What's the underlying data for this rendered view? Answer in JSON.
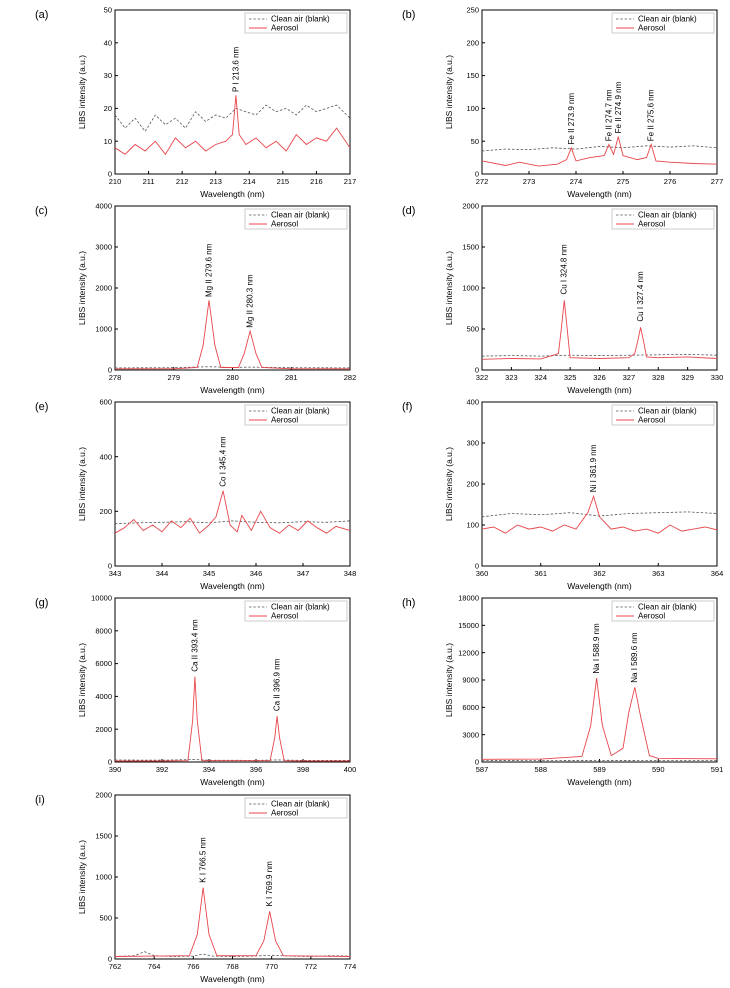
{
  "legend_labels": [
    "Clean air (blank)",
    "Aerosol"
  ],
  "colors": {
    "blank": "#555555",
    "aerosol": "#e8464b"
  },
  "chart_data": [
    {
      "type": "line",
      "panel": "(a)",
      "xlabel": "Wavelength (nm)",
      "ylabel": "LIBS intensity (a.u.)",
      "xlim": [
        210,
        217
      ],
      "ylim": [
        0,
        50
      ],
      "xticks": [
        210,
        211,
        212,
        213,
        214,
        215,
        216,
        217
      ],
      "yticks": [
        0,
        10,
        20,
        30,
        40,
        50
      ],
      "legend": "top-right",
      "series": [
        {
          "name": "Clean air (blank)",
          "x": [
            210,
            210.3,
            210.6,
            210.9,
            211.2,
            211.5,
            211.8,
            212.1,
            212.4,
            212.7,
            213.0,
            213.3,
            213.6,
            213.9,
            214.2,
            214.5,
            214.8,
            215.1,
            215.4,
            215.7,
            216.0,
            216.3,
            216.6,
            217.0
          ],
          "y": [
            18,
            14,
            17,
            13,
            18,
            15,
            17,
            14,
            19,
            16,
            18,
            17,
            20,
            19,
            18,
            21,
            19,
            20,
            18,
            21,
            19,
            20,
            21,
            17
          ]
        },
        {
          "name": "Aerosol",
          "x": [
            210,
            210.3,
            210.6,
            210.9,
            211.2,
            211.5,
            211.8,
            212.1,
            212.4,
            212.7,
            213.0,
            213.3,
            213.5,
            213.6,
            213.7,
            213.9,
            214.2,
            214.5,
            214.8,
            215.1,
            215.4,
            215.7,
            216.0,
            216.3,
            216.6,
            217.0
          ],
          "y": [
            8,
            6,
            9,
            7,
            10,
            6,
            11,
            8,
            10,
            7,
            9,
            10,
            12,
            24,
            12,
            9,
            11,
            8,
            10,
            7,
            12,
            9,
            11,
            10,
            14,
            8
          ]
        }
      ],
      "annotations": [
        {
          "text": "P I 213.6 nm",
          "x": 213.6,
          "y": 25
        }
      ]
    },
    {
      "type": "line",
      "panel": "(b)",
      "xlabel": "Wavelength (nm)",
      "ylabel": "LIBS intensity (a.u.)",
      "xlim": [
        272,
        277
      ],
      "ylim": [
        0,
        250
      ],
      "xticks": [
        272,
        273,
        274,
        275,
        276,
        277
      ],
      "yticks": [
        0,
        50,
        100,
        150,
        200,
        250
      ],
      "legend": "top-right",
      "series": [
        {
          "name": "Clean air (blank)",
          "x": [
            272,
            272.5,
            273,
            273.5,
            274,
            274.5,
            275,
            275.5,
            276,
            276.5,
            277
          ],
          "y": [
            35,
            38,
            37,
            40,
            38,
            42,
            40,
            43,
            41,
            43,
            40
          ]
        },
        {
          "name": "Aerosol",
          "x": [
            272,
            272.5,
            272.8,
            273.2,
            273.6,
            273.8,
            273.9,
            274.0,
            274.3,
            274.6,
            274.7,
            274.8,
            274.9,
            275.0,
            275.3,
            275.5,
            275.6,
            275.7,
            276.0,
            276.5,
            277
          ],
          "y": [
            20,
            13,
            18,
            12,
            15,
            22,
            40,
            20,
            25,
            28,
            45,
            30,
            57,
            28,
            22,
            25,
            45,
            20,
            18,
            16,
            15
          ]
        }
      ],
      "annotations": [
        {
          "text": "Fe II 273.9 nm",
          "x": 273.9,
          "y": 45
        },
        {
          "text": "Fe II 274.7 nm",
          "x": 274.7,
          "y": 50
        },
        {
          "text": "Fe II 274.9 nm",
          "x": 274.9,
          "y": 62
        },
        {
          "text": "Fe II 275.6 nm",
          "x": 275.6,
          "y": 50
        }
      ]
    },
    {
      "type": "line",
      "panel": "(c)",
      "xlabel": "Wavelength (nm)",
      "ylabel": "LIBS intensity (a.u.)",
      "xlim": [
        278,
        282
      ],
      "ylim": [
        0,
        4000
      ],
      "xticks": [
        278,
        279,
        280,
        281,
        282
      ],
      "yticks": [
        0,
        1000,
        2000,
        3000,
        4000
      ],
      "legend": "top-right",
      "series": [
        {
          "name": "Clean air (blank)",
          "x": [
            278,
            279,
            279.6,
            280,
            280.3,
            281,
            282
          ],
          "y": [
            50,
            55,
            80,
            60,
            70,
            55,
            50
          ]
        },
        {
          "name": "Aerosol",
          "x": [
            278,
            279,
            279.4,
            279.5,
            279.6,
            279.7,
            279.8,
            280.1,
            280.2,
            280.3,
            280.4,
            280.5,
            281,
            282
          ],
          "y": [
            30,
            30,
            60,
            600,
            1700,
            600,
            60,
            60,
            400,
            950,
            400,
            60,
            30,
            30
          ]
        }
      ],
      "annotations": [
        {
          "text": "Mg II 279.6 nm",
          "x": 279.6,
          "y": 1780
        },
        {
          "text": "Mg II 280.3 nm",
          "x": 280.3,
          "y": 1030
        }
      ]
    },
    {
      "type": "line",
      "panel": "(d)",
      "xlabel": "Wavelength (nm)",
      "ylabel": "LIBS intensity (a.u.)",
      "xlim": [
        322,
        330
      ],
      "ylim": [
        0,
        2000
      ],
      "xticks": [
        322,
        323,
        324,
        325,
        326,
        327,
        328,
        329,
        330
      ],
      "yticks": [
        0,
        500,
        1000,
        1500,
        2000
      ],
      "legend": "top-right",
      "series": [
        {
          "name": "Clean air (blank)",
          "x": [
            322,
            323,
            324,
            325,
            326,
            327,
            328,
            329,
            330
          ],
          "y": [
            170,
            175,
            170,
            180,
            175,
            180,
            185,
            190,
            180
          ]
        },
        {
          "name": "Aerosol",
          "x": [
            322,
            323,
            324,
            324.6,
            324.7,
            324.8,
            324.9,
            325.0,
            326,
            327,
            327.2,
            327.3,
            327.4,
            327.5,
            327.6,
            328,
            329,
            330
          ],
          "y": [
            130,
            140,
            135,
            200,
            500,
            850,
            500,
            150,
            140,
            150,
            200,
            350,
            520,
            350,
            160,
            150,
            160,
            140
          ]
        }
      ],
      "annotations": [
        {
          "text": "Cu I 324.8 nm",
          "x": 324.8,
          "y": 920
        },
        {
          "text": "Cu I 327.4 nm",
          "x": 327.4,
          "y": 590
        }
      ]
    },
    {
      "type": "line",
      "panel": "(e)",
      "xlabel": "Wavelength (nm)",
      "ylabel": "LIBS intensity (a.u.)",
      "xlim": [
        343,
        348
      ],
      "ylim": [
        0,
        600
      ],
      "xticks": [
        343,
        344,
        345,
        346,
        347,
        348
      ],
      "yticks": [
        0,
        200,
        400,
        600
      ],
      "legend": "top-right",
      "series": [
        {
          "name": "Clean air (blank)",
          "x": [
            343,
            343.5,
            344,
            344.5,
            345,
            345.5,
            346,
            346.5,
            347,
            347.5,
            348
          ],
          "y": [
            155,
            158,
            160,
            162,
            158,
            165,
            160,
            158,
            162,
            160,
            165
          ]
        },
        {
          "name": "Aerosol",
          "x": [
            343,
            343.2,
            343.4,
            343.6,
            343.8,
            344.0,
            344.2,
            344.4,
            344.6,
            344.8,
            345.0,
            345.15,
            345.3,
            345.45,
            345.6,
            345.7,
            345.9,
            346.1,
            346.3,
            346.5,
            346.7,
            346.9,
            347.1,
            347.3,
            347.5,
            347.7,
            348
          ],
          "y": [
            120,
            140,
            170,
            130,
            150,
            125,
            165,
            140,
            175,
            120,
            150,
            180,
            275,
            150,
            125,
            185,
            130,
            200,
            140,
            120,
            150,
            130,
            165,
            140,
            120,
            145,
            130
          ]
        }
      ],
      "annotations": [
        {
          "text": "Co I 345.4 nm",
          "x": 345.3,
          "y": 290
        }
      ]
    },
    {
      "type": "line",
      "panel": "(f)",
      "xlabel": "Wavelength (nm)",
      "ylabel": "LIBS intensity (a.u.)",
      "xlim": [
        360,
        364
      ],
      "ylim": [
        0,
        400
      ],
      "xticks": [
        360,
        361,
        362,
        363,
        364
      ],
      "yticks": [
        0,
        100,
        200,
        300,
        400
      ],
      "legend": "top-right",
      "series": [
        {
          "name": "Clean air (blank)",
          "x": [
            360,
            360.5,
            361,
            361.5,
            362,
            362.5,
            363,
            363.5,
            364
          ],
          "y": [
            120,
            128,
            125,
            130,
            122,
            128,
            130,
            132,
            128
          ]
        },
        {
          "name": "Aerosol",
          "x": [
            360,
            360.2,
            360.4,
            360.6,
            360.8,
            361.0,
            361.2,
            361.4,
            361.6,
            361.8,
            361.9,
            362.0,
            362.2,
            362.4,
            362.6,
            362.8,
            363.0,
            363.2,
            363.4,
            363.6,
            363.8,
            364
          ],
          "y": [
            90,
            95,
            80,
            100,
            90,
            95,
            85,
            100,
            90,
            130,
            170,
            120,
            90,
            95,
            85,
            90,
            80,
            100,
            85,
            90,
            95,
            88
          ]
        }
      ],
      "annotations": [
        {
          "text": "Ni I 361.9 nm",
          "x": 361.9,
          "y": 180
        }
      ]
    },
    {
      "type": "line",
      "panel": "(g)",
      "xlabel": "Wavelength (nm)",
      "ylabel": "LIBS intensity (a.u.)",
      "xlim": [
        390,
        400
      ],
      "ylim": [
        0,
        10000
      ],
      "xticks": [
        390,
        392,
        394,
        396,
        398,
        400
      ],
      "yticks": [
        0,
        2000,
        4000,
        6000,
        8000,
        10000
      ],
      "legend": "top-right",
      "series": [
        {
          "name": "Clean air (blank)",
          "x": [
            390,
            392,
            393.4,
            394,
            396,
            396.9,
            398,
            400
          ],
          "y": [
            120,
            110,
            150,
            110,
            100,
            130,
            100,
            100
          ]
        },
        {
          "name": "Aerosol",
          "x": [
            390,
            392,
            393.1,
            393.3,
            393.4,
            393.5,
            393.7,
            396.6,
            396.8,
            396.9,
            397.0,
            397.2,
            398,
            400
          ],
          "y": [
            60,
            60,
            80,
            2500,
            5200,
            2500,
            80,
            80,
            1500,
            2800,
            1500,
            80,
            60,
            60
          ]
        }
      ],
      "annotations": [
        {
          "text": "Ca II 393.4 nm",
          "x": 393.4,
          "y": 5500
        },
        {
          "text": "Ca II 396.9 nm",
          "x": 396.9,
          "y": 3100
        }
      ]
    },
    {
      "type": "line",
      "panel": "(h)",
      "xlabel": "Wavelength (nm)",
      "ylabel": "LIBS intensity (a.u.)",
      "xlim": [
        587,
        591
      ],
      "ylim": [
        0,
        18000
      ],
      "xticks": [
        587,
        588,
        589,
        590,
        591
      ],
      "yticks": [
        0,
        3000,
        6000,
        9000,
        12000,
        15000,
        18000
      ],
      "legend": "top-right",
      "series": [
        {
          "name": "Clean air (blank)",
          "x": [
            587,
            588,
            589,
            590,
            591
          ],
          "y": [
            150,
            160,
            180,
            170,
            160
          ]
        },
        {
          "name": "Aerosol",
          "x": [
            587,
            588,
            588.7,
            588.85,
            588.95,
            589.05,
            589.2,
            589.4,
            589.5,
            589.6,
            589.7,
            589.85,
            590,
            591
          ],
          "y": [
            300,
            320,
            600,
            4000,
            9200,
            4000,
            700,
            1500,
            5500,
            8200,
            5000,
            700,
            400,
            350
          ]
        }
      ],
      "annotations": [
        {
          "text": "Na I 588.9 nm",
          "x": 588.95,
          "y": 9700
        },
        {
          "text": "Na I 589.6 nm",
          "x": 589.6,
          "y": 8700
        }
      ]
    },
    {
      "type": "line",
      "panel": "(i)",
      "xlabel": "Wavelength (nm)",
      "ylabel": "LIBS intensity (a.u.)",
      "xlim": [
        762,
        774
      ],
      "ylim": [
        0,
        2000
      ],
      "xticks": [
        762,
        764,
        766,
        768,
        770,
        772,
        774
      ],
      "yticks": [
        0,
        500,
        1000,
        1500,
        2000
      ],
      "legend": "top-right",
      "series": [
        {
          "name": "Clean air (blank)",
          "x": [
            762,
            763,
            763.5,
            764,
            765,
            766,
            766.5,
            767,
            768,
            769,
            770,
            771,
            772,
            773,
            774
          ],
          "y": [
            30,
            40,
            90,
            40,
            30,
            35,
            60,
            35,
            30,
            35,
            45,
            35,
            30,
            40,
            35
          ]
        },
        {
          "name": "Aerosol",
          "x": [
            762,
            764,
            765.8,
            766.2,
            766.5,
            766.8,
            767.2,
            769.2,
            769.6,
            769.9,
            770.2,
            770.6,
            772,
            774
          ],
          "y": [
            30,
            35,
            40,
            300,
            870,
            300,
            40,
            40,
            220,
            580,
            220,
            40,
            35,
            30
          ]
        }
      ],
      "annotations": [
        {
          "text": "K I 766.5 nm",
          "x": 766.5,
          "y": 930
        },
        {
          "text": "K I 769.9 nm",
          "x": 769.9,
          "y": 640
        }
      ]
    }
  ]
}
